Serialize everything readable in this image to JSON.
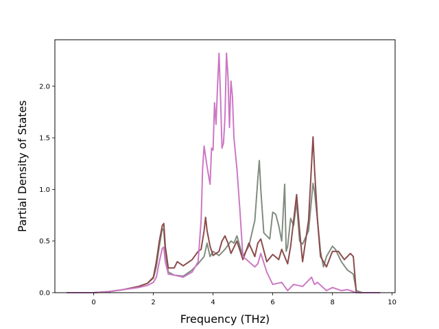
{
  "chart_data": {
    "type": "line",
    "xlabel": "Frequency (THz)",
    "ylabel": "Partial Density of States",
    "xlim": [
      -1.3,
      10.1
    ],
    "ylim": [
      0.0,
      2.45
    ],
    "xticks": [
      0,
      2,
      4,
      6,
      8,
      10
    ],
    "yticks": [
      0.0,
      0.5,
      1.0,
      1.5,
      2.0
    ],
    "xtick_labels": [
      "0",
      "2",
      "4",
      "6",
      "8",
      "10"
    ],
    "ytick_labels": [
      "0.0",
      "0.5",
      "1.0",
      "1.5",
      "2.0"
    ],
    "grid": false,
    "series": [
      {
        "color": "#7f8c7f",
        "x": [
          -0.9,
          0.0,
          0.5,
          1.0,
          1.5,
          1.8,
          2.0,
          2.1,
          2.2,
          2.3,
          2.35,
          2.4,
          2.5,
          2.7,
          3.0,
          3.3,
          3.5,
          3.7,
          3.8,
          3.9,
          4.0,
          4.2,
          4.4,
          4.6,
          4.7,
          4.8,
          4.9,
          5.0,
          5.2,
          5.4,
          5.5,
          5.55,
          5.6,
          5.7,
          5.9,
          6.0,
          6.1,
          6.2,
          6.3,
          6.4,
          6.45,
          6.5,
          6.6,
          6.7,
          6.8,
          6.9,
          7.0,
          7.2,
          7.35,
          7.4,
          7.5,
          7.6,
          7.7,
          7.8,
          8.0,
          8.1,
          8.3,
          8.5,
          8.7,
          8.8,
          9.0,
          9.6
        ],
        "y": [
          0.0,
          0.0,
          0.01,
          0.03,
          0.06,
          0.09,
          0.14,
          0.25,
          0.45,
          0.62,
          0.6,
          0.4,
          0.2,
          0.17,
          0.16,
          0.22,
          0.28,
          0.35,
          0.48,
          0.35,
          0.4,
          0.36,
          0.42,
          0.5,
          0.48,
          0.55,
          0.45,
          0.35,
          0.45,
          0.7,
          1.1,
          1.28,
          1.0,
          0.58,
          0.52,
          0.78,
          0.76,
          0.65,
          0.5,
          1.05,
          0.4,
          0.45,
          0.72,
          0.65,
          0.88,
          0.5,
          0.47,
          0.6,
          1.06,
          0.98,
          0.7,
          0.4,
          0.25,
          0.35,
          0.45,
          0.42,
          0.3,
          0.22,
          0.18,
          0.02,
          0.0,
          0.0
        ]
      },
      {
        "color": "#8b4a4a",
        "x": [
          -0.9,
          0.0,
          0.5,
          1.0,
          1.5,
          1.8,
          2.0,
          2.1,
          2.2,
          2.3,
          2.35,
          2.4,
          2.5,
          2.7,
          2.8,
          3.0,
          3.3,
          3.5,
          3.6,
          3.7,
          3.75,
          3.8,
          3.9,
          4.0,
          4.2,
          4.3,
          4.4,
          4.5,
          4.6,
          4.8,
          5.0,
          5.2,
          5.4,
          5.5,
          5.6,
          5.8,
          6.0,
          6.2,
          6.3,
          6.5,
          6.6,
          6.8,
          6.9,
          7.0,
          7.2,
          7.35,
          7.4,
          7.5,
          7.6,
          7.8,
          8.0,
          8.2,
          8.4,
          8.6,
          8.7,
          8.8,
          9.0,
          9.6
        ],
        "y": [
          0.0,
          0.0,
          0.01,
          0.03,
          0.06,
          0.09,
          0.15,
          0.3,
          0.5,
          0.65,
          0.67,
          0.45,
          0.24,
          0.24,
          0.3,
          0.26,
          0.32,
          0.4,
          0.42,
          0.6,
          0.73,
          0.6,
          0.45,
          0.36,
          0.4,
          0.5,
          0.55,
          0.48,
          0.38,
          0.5,
          0.32,
          0.48,
          0.35,
          0.48,
          0.52,
          0.3,
          0.37,
          0.32,
          0.42,
          0.28,
          0.45,
          0.95,
          0.6,
          0.3,
          0.7,
          1.51,
          1.2,
          0.7,
          0.35,
          0.25,
          0.4,
          0.4,
          0.32,
          0.38,
          0.35,
          0.0,
          0.0,
          0.0
        ]
      },
      {
        "color": "#cc77c4",
        "x": [
          -0.9,
          0.0,
          0.5,
          1.0,
          1.5,
          1.8,
          2.0,
          2.1,
          2.2,
          2.3,
          2.35,
          2.4,
          2.5,
          2.7,
          3.0,
          3.3,
          3.5,
          3.6,
          3.65,
          3.7,
          3.8,
          3.9,
          3.95,
          4.0,
          4.05,
          4.1,
          4.15,
          4.2,
          4.25,
          4.3,
          4.35,
          4.4,
          4.45,
          4.5,
          4.55,
          4.6,
          4.65,
          4.7,
          4.8,
          4.9,
          5.0,
          5.2,
          5.4,
          5.5,
          5.6,
          5.8,
          6.0,
          6.3,
          6.5,
          6.7,
          7.0,
          7.3,
          7.4,
          7.5,
          7.8,
          8.0,
          8.3,
          8.5,
          8.8,
          9.6
        ],
        "y": [
          0.0,
          0.0,
          0.01,
          0.03,
          0.05,
          0.07,
          0.1,
          0.15,
          0.3,
          0.43,
          0.44,
          0.3,
          0.18,
          0.17,
          0.15,
          0.2,
          0.3,
          0.7,
          1.2,
          1.42,
          1.22,
          1.05,
          1.4,
          1.38,
          1.84,
          1.63,
          2.0,
          2.32,
          1.9,
          1.4,
          1.45,
          1.7,
          2.32,
          2.1,
          1.6,
          2.05,
          1.9,
          1.5,
          1.2,
          0.8,
          0.35,
          0.3,
          0.25,
          0.28,
          0.38,
          0.2,
          0.08,
          0.1,
          0.02,
          0.08,
          0.06,
          0.15,
          0.08,
          0.1,
          0.02,
          0.05,
          0.02,
          0.03,
          0.0,
          0.0
        ]
      }
    ]
  }
}
